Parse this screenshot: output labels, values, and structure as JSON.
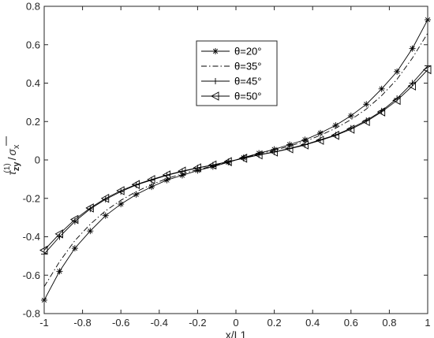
{
  "chart_data": {
    "type": "line",
    "title": "",
    "xlabel": "x/L1",
    "ylabel_parts": {
      "tau": "τ",
      "sub": "zy",
      "sup": "(1)",
      "sep": " /",
      "sigma": "σ",
      "sigma_sub": "x"
    },
    "xlim": [
      -1,
      1
    ],
    "ylim": [
      -0.8,
      0.8
    ],
    "xticks": [
      -1,
      -0.8,
      -0.6,
      -0.4,
      -0.2,
      0,
      0.2,
      0.4,
      0.6,
      0.8,
      1
    ],
    "yticks": [
      -0.8,
      -0.6,
      -0.4,
      -0.2,
      0,
      0.2,
      0.4,
      0.6,
      0.8
    ],
    "xtick_labels": [
      "-1",
      "-0.8",
      "-0.6",
      "-0.4",
      "-0.2",
      "0",
      "0.2",
      "0.4",
      "0.6",
      "0.8",
      "1"
    ],
    "ytick_labels": [
      "-0.8",
      "-0.6",
      "-0.4",
      "-0.2",
      "0",
      "0.2",
      "0.4",
      "0.6",
      "0.8"
    ],
    "grid": false,
    "legend_position": "upper-center",
    "x": [
      -1,
      -0.92,
      -0.84,
      -0.76,
      -0.68,
      -0.6,
      -0.52,
      -0.44,
      -0.36,
      -0.28,
      -0.2,
      -0.12,
      -0.04,
      0.04,
      0.12,
      0.2,
      0.28,
      0.36,
      0.44,
      0.52,
      0.6,
      0.68,
      0.76,
      0.84,
      0.92,
      1
    ],
    "series": [
      {
        "name": "θ=20°",
        "marker": "asterisk",
        "line": "solid",
        "values": [
          -0.73,
          -0.58,
          -0.46,
          -0.37,
          -0.29,
          -0.23,
          -0.18,
          -0.14,
          -0.105,
          -0.08,
          -0.055,
          -0.035,
          -0.012,
          0.012,
          0.035,
          0.055,
          0.08,
          0.105,
          0.14,
          0.18,
          0.23,
          0.29,
          0.37,
          0.46,
          0.58,
          0.73
        ]
      },
      {
        "name": "θ=35°",
        "marker": "none",
        "line": "dashdot",
        "values": [
          -0.66,
          -0.53,
          -0.42,
          -0.335,
          -0.265,
          -0.21,
          -0.165,
          -0.128,
          -0.097,
          -0.072,
          -0.05,
          -0.032,
          -0.011,
          0.011,
          0.032,
          0.05,
          0.072,
          0.097,
          0.128,
          0.165,
          0.21,
          0.265,
          0.335,
          0.42,
          0.53,
          0.66
        ]
      },
      {
        "name": "θ=45°",
        "marker": "plus",
        "line": "solid",
        "values": [
          -0.49,
          -0.4,
          -0.32,
          -0.255,
          -0.205,
          -0.165,
          -0.13,
          -0.105,
          -0.08,
          -0.06,
          -0.042,
          -0.027,
          -0.009,
          0.009,
          0.027,
          0.042,
          0.06,
          0.08,
          0.105,
          0.13,
          0.165,
          0.205,
          0.255,
          0.32,
          0.4,
          0.49
        ]
      },
      {
        "name": "θ=50°",
        "marker": "triangle-left",
        "line": "solid",
        "values": [
          -0.47,
          -0.385,
          -0.31,
          -0.25,
          -0.2,
          -0.16,
          -0.128,
          -0.102,
          -0.078,
          -0.058,
          -0.041,
          -0.026,
          -0.009,
          0.009,
          0.026,
          0.041,
          0.058,
          0.078,
          0.102,
          0.128,
          0.16,
          0.2,
          0.25,
          0.31,
          0.385,
          0.47
        ]
      }
    ],
    "colors": {
      "line": "#000000",
      "axis": "#262626",
      "background": "#ffffff"
    }
  }
}
